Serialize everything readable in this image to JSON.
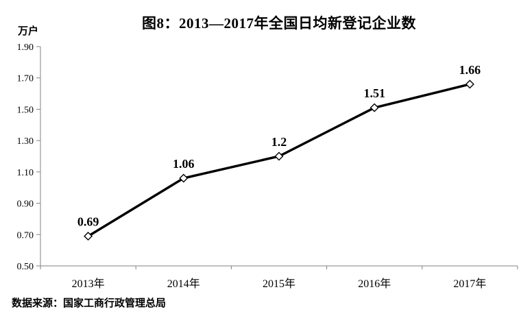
{
  "title": "图8：2013—2017年全国日均新登记企业数",
  "source_note": "数据来源：国家工商行政管理总局",
  "chart_data": {
    "type": "line",
    "title": "图8：2013—2017年全国日均新登记企业数",
    "xlabel": "",
    "ylabel": "万户",
    "categories": [
      "2013年",
      "2014年",
      "2015年",
      "2016年",
      "2017年"
    ],
    "series": [
      {
        "name": "日均新登记企业数",
        "values": [
          0.69,
          1.06,
          1.2,
          1.51,
          1.66
        ],
        "data_labels": [
          "0.69",
          "1.06",
          "1.2",
          "1.51",
          "1.66"
        ]
      }
    ],
    "ylim": [
      0.5,
      1.9
    ],
    "ytick_labels": [
      "0.50",
      "0.70",
      "0.90",
      "1.10",
      "1.30",
      "1.50",
      "1.70",
      "1.90"
    ],
    "grid": false,
    "legend_position": "none",
    "colors": {
      "line": "#000000",
      "marker_fill": "#ffffff",
      "marker_stroke": "#000000",
      "axis": "#808080",
      "text": "#000000",
      "background": "#ffffff"
    }
  }
}
